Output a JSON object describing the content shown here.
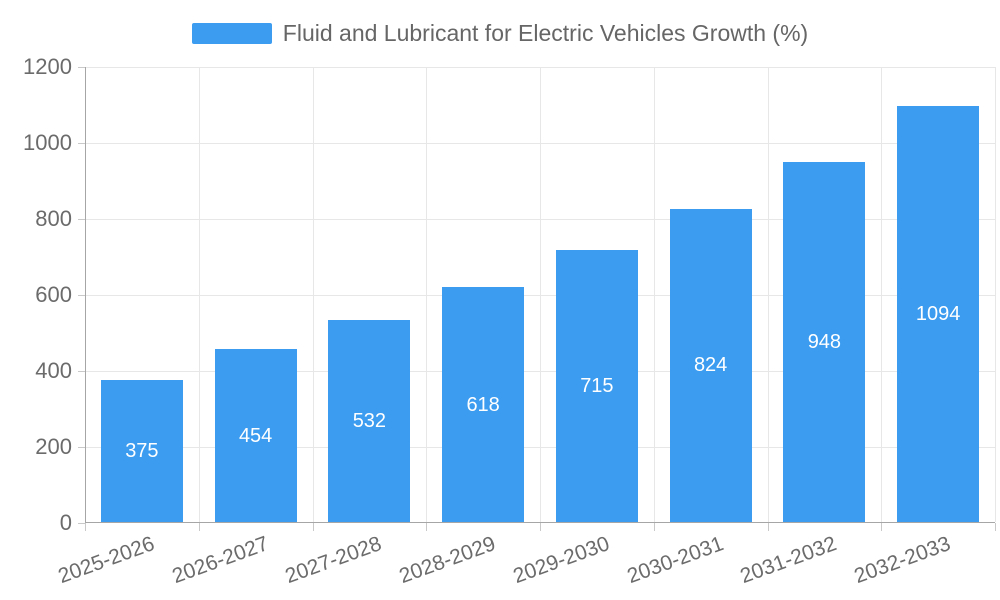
{
  "legend": {
    "label": "Fluid and Lubricant for Electric Vehicles Growth (%)",
    "swatch_color": "#3b9cf0"
  },
  "chart_data": {
    "type": "bar",
    "title": "Fluid and Lubricant for Electric Vehicles Growth (%)",
    "legend_entries": [
      "Fluid and Lubricant for Electric Vehicles Growth (%)"
    ],
    "legend_position": "top-center",
    "categories": [
      "2025-2026",
      "2026-2027",
      "2027-2028",
      "2028-2029",
      "2029-2030",
      "2030-2031",
      "2031-2032",
      "2032-2033"
    ],
    "values": [
      375,
      454,
      532,
      618,
      715,
      824,
      948,
      1094
    ],
    "value_labels_shown": true,
    "value_label_position": "inside-center",
    "xlabel": "",
    "ylabel": "",
    "ylim": [
      0,
      1200
    ],
    "y_ticks": [
      0,
      200,
      400,
      600,
      800,
      1000,
      1200
    ],
    "x_tick_rotation_deg": -20,
    "grid": true,
    "bar_color": "#3b9cf0",
    "value_label_color": "#ffffff"
  },
  "colors": {
    "bar": "#3b9cf0",
    "grid": "#e7e7e7",
    "axis": "#a6a6a6",
    "tick": "#c9c9c9",
    "tick_text": "#6b6b6b",
    "legend_text": "#666666",
    "background": "#ffffff",
    "value_text": "#ffffff"
  }
}
